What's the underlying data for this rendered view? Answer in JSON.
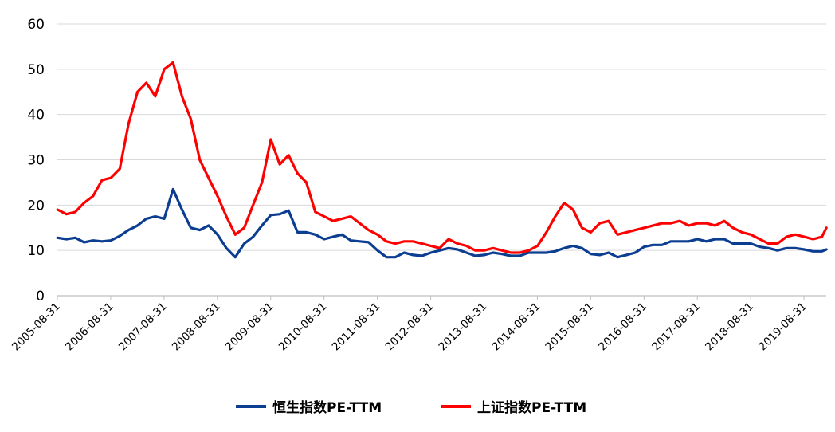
{
  "chart_data": {
    "type": "line",
    "title": "",
    "xlabel": "",
    "ylabel": "",
    "ylim": [
      0,
      60
    ],
    "yticks": [
      0,
      10,
      20,
      30,
      40,
      50,
      60
    ],
    "grid": "horizontal",
    "legend_position": "bottom",
    "x_range": [
      "2005-08-31",
      "2020-01-31"
    ],
    "x_tick_labels": [
      "2005-08-31",
      "2006-08-31",
      "2007-08-31",
      "2008-08-31",
      "2009-08-31",
      "2010-08-31",
      "2011-08-31",
      "2012-08-31",
      "2013-08-31",
      "2014-08-31",
      "2015-08-31",
      "2016-08-31",
      "2017-08-31",
      "2018-08-31",
      "2019-08-31"
    ],
    "series": [
      {
        "name": "恒生指数PE-TTM",
        "color": "#0b3d91",
        "x": [
          "2005-08",
          "2005-10",
          "2005-12",
          "2006-02",
          "2006-04",
          "2006-06",
          "2006-08",
          "2006-10",
          "2006-12",
          "2007-02",
          "2007-04",
          "2007-06",
          "2007-08",
          "2007-10",
          "2007-12",
          "2008-02",
          "2008-04",
          "2008-06",
          "2008-08",
          "2008-10",
          "2008-12",
          "2009-02",
          "2009-04",
          "2009-06",
          "2009-08",
          "2009-10",
          "2009-12",
          "2010-02",
          "2010-04",
          "2010-06",
          "2010-08",
          "2010-10",
          "2010-12",
          "2011-02",
          "2011-04",
          "2011-06",
          "2011-08",
          "2011-10",
          "2011-12",
          "2012-02",
          "2012-04",
          "2012-06",
          "2012-08",
          "2012-10",
          "2012-12",
          "2013-02",
          "2013-04",
          "2013-06",
          "2013-08",
          "2013-10",
          "2013-12",
          "2014-02",
          "2014-04",
          "2014-06",
          "2014-08",
          "2014-10",
          "2014-12",
          "2015-02",
          "2015-04",
          "2015-06",
          "2015-08",
          "2015-10",
          "2015-12",
          "2016-02",
          "2016-04",
          "2016-06",
          "2016-08",
          "2016-10",
          "2016-12",
          "2017-02",
          "2017-04",
          "2017-06",
          "2017-08",
          "2017-10",
          "2017-12",
          "2018-02",
          "2018-04",
          "2018-06",
          "2018-08",
          "2018-10",
          "2018-12",
          "2019-02",
          "2019-04",
          "2019-06",
          "2019-08",
          "2019-10",
          "2019-12",
          "2020-01"
        ],
        "values": [
          12.8,
          12.5,
          12.8,
          11.8,
          12.2,
          12.0,
          12.2,
          13.2,
          14.5,
          15.5,
          17.0,
          17.5,
          17.0,
          23.5,
          19.0,
          15.0,
          14.5,
          15.5,
          13.5,
          10.5,
          8.5,
          11.5,
          13.0,
          15.5,
          17.8,
          18.0,
          18.8,
          14.0,
          14.0,
          13.5,
          12.5,
          13.0,
          13.5,
          12.2,
          12.0,
          11.8,
          10.0,
          8.5,
          8.5,
          9.5,
          9.0,
          8.8,
          9.5,
          10.0,
          10.5,
          10.2,
          9.5,
          8.8,
          9.0,
          9.5,
          9.2,
          8.8,
          8.8,
          9.5,
          9.5,
          9.5,
          9.8,
          10.5,
          11.0,
          10.5,
          9.2,
          9.0,
          9.5,
          8.5,
          9.0,
          9.5,
          10.8,
          11.2,
          11.2,
          12.0,
          12.0,
          12.0,
          12.5,
          12.0,
          12.5,
          12.5,
          11.5,
          11.5,
          11.5,
          10.8,
          10.5,
          10.0,
          10.5,
          10.5,
          10.2,
          9.8,
          9.8,
          10.2
        ]
      },
      {
        "name": "上证指数PE-TTM",
        "color": "#ff0000",
        "x": [
          "2005-08",
          "2005-10",
          "2005-12",
          "2006-02",
          "2006-04",
          "2006-06",
          "2006-08",
          "2006-10",
          "2006-12",
          "2007-02",
          "2007-04",
          "2007-06",
          "2007-08",
          "2007-10",
          "2007-12",
          "2008-02",
          "2008-04",
          "2008-06",
          "2008-08",
          "2008-10",
          "2008-12",
          "2009-02",
          "2009-04",
          "2009-06",
          "2009-08",
          "2009-10",
          "2009-12",
          "2010-02",
          "2010-04",
          "2010-06",
          "2010-08",
          "2010-10",
          "2010-12",
          "2011-02",
          "2011-04",
          "2011-06",
          "2011-08",
          "2011-10",
          "2011-12",
          "2012-02",
          "2012-04",
          "2012-06",
          "2012-08",
          "2012-10",
          "2012-12",
          "2013-02",
          "2013-04",
          "2013-06",
          "2013-08",
          "2013-10",
          "2013-12",
          "2014-02",
          "2014-04",
          "2014-06",
          "2014-08",
          "2014-10",
          "2014-12",
          "2015-02",
          "2015-04",
          "2015-06",
          "2015-08",
          "2015-10",
          "2015-12",
          "2016-02",
          "2016-04",
          "2016-06",
          "2016-08",
          "2016-10",
          "2016-12",
          "2017-02",
          "2017-04",
          "2017-06",
          "2017-08",
          "2017-10",
          "2017-12",
          "2018-02",
          "2018-04",
          "2018-06",
          "2018-08",
          "2018-10",
          "2018-12",
          "2019-02",
          "2019-04",
          "2019-06",
          "2019-08",
          "2019-10",
          "2019-12",
          "2020-01"
        ],
        "values": [
          19.0,
          18.0,
          18.5,
          20.5,
          22.0,
          25.5,
          26.0,
          28.0,
          38.0,
          45.0,
          47.0,
          44.0,
          50.0,
          51.5,
          44.0,
          39.0,
          30.0,
          26.0,
          22.0,
          17.5,
          13.5,
          15.0,
          20.0,
          25.0,
          34.5,
          29.0,
          31.0,
          27.0,
          25.0,
          18.5,
          17.5,
          16.5,
          17.0,
          17.5,
          16.0,
          14.5,
          13.5,
          12.0,
          11.5,
          12.0,
          12.0,
          11.5,
          11.0,
          10.5,
          12.5,
          11.5,
          11.0,
          10.0,
          10.0,
          10.5,
          10.0,
          9.5,
          9.5,
          10.0,
          11.0,
          14.0,
          17.5,
          20.5,
          19.0,
          15.0,
          14.0,
          16.0,
          16.5,
          13.5,
          14.0,
          14.5,
          15.0,
          15.5,
          16.0,
          16.0,
          16.5,
          15.5,
          16.0,
          16.0,
          15.5,
          16.5,
          15.0,
          14.0,
          13.5,
          12.5,
          11.5,
          11.5,
          13.0,
          13.5,
          13.0,
          12.5,
          13.0,
          15.0
        ]
      }
    ]
  }
}
